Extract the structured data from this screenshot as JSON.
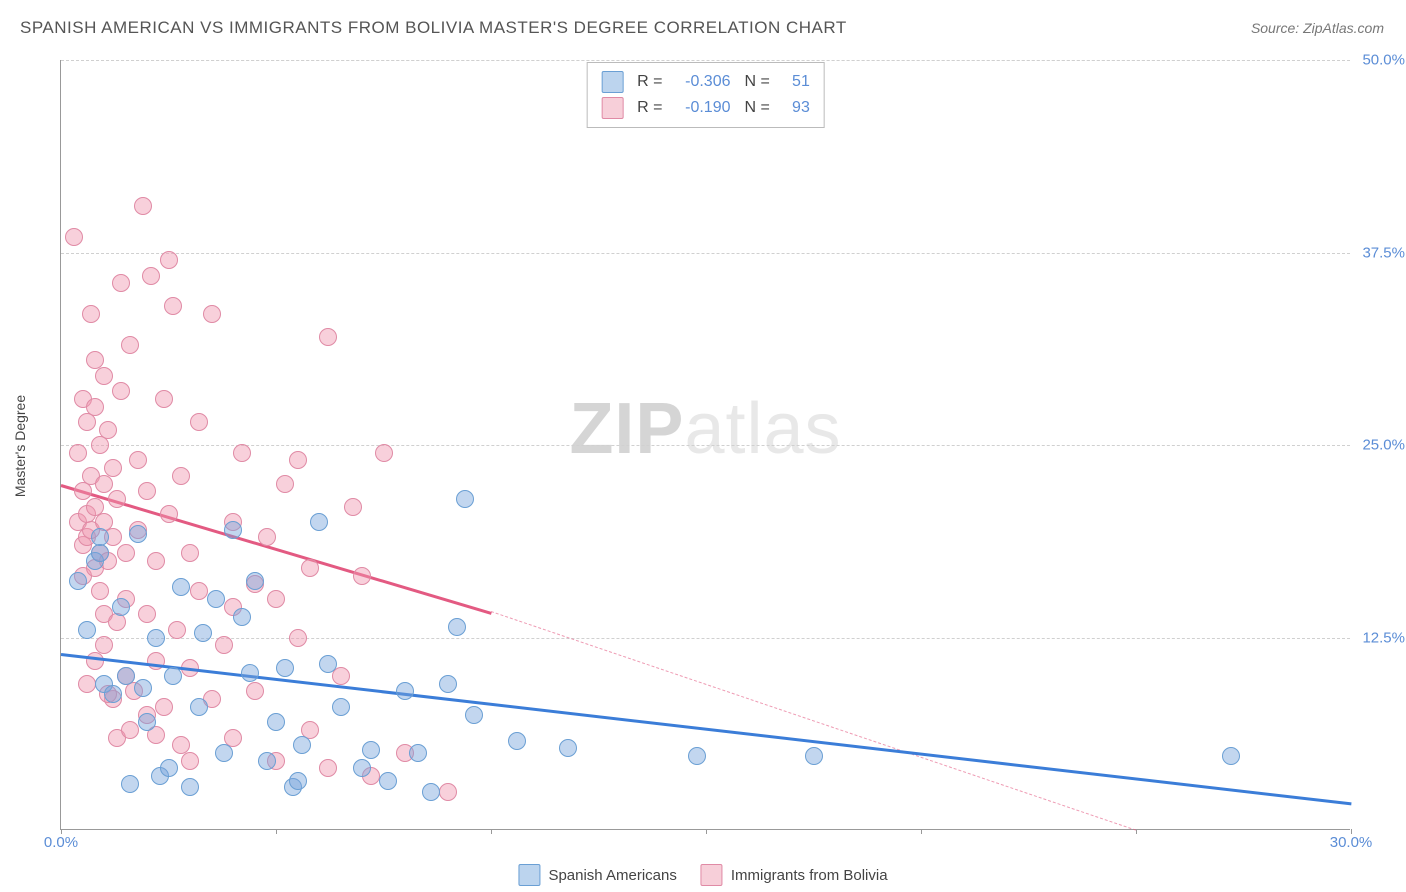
{
  "title": "SPANISH AMERICAN VS IMMIGRANTS FROM BOLIVIA MASTER'S DEGREE CORRELATION CHART",
  "source": "Source: ZipAtlas.com",
  "ylabel": "Master's Degree",
  "watermark_bold": "ZIP",
  "watermark_light": "atlas",
  "chart": {
    "type": "scatter",
    "xlim": [
      0,
      30
    ],
    "ylim": [
      0,
      50
    ],
    "background_color": "#ffffff",
    "grid_color": "#d0d0d0",
    "x_ticks": [
      0,
      5,
      10,
      15,
      20,
      25,
      30
    ],
    "x_tick_labels": [
      "0.0%",
      "",
      "",
      "",
      "",
      "",
      "30.0%"
    ],
    "y_ticks": [
      12.5,
      25.0,
      37.5,
      50.0
    ],
    "y_tick_labels": [
      "12.5%",
      "25.0%",
      "37.5%",
      "50.0%"
    ],
    "axis_color": "#999999",
    "tick_label_color": "#5b8dd6",
    "tick_label_fontsize": 15
  },
  "series": [
    {
      "name": "Spanish Americans",
      "color_fill": "rgba(120,165,220,0.45)",
      "color_stroke": "#6a9fd4",
      "swatch_fill": "#bcd4ee",
      "swatch_border": "#6a9fd4",
      "stats": {
        "r_label": "R =",
        "r": "-0.306",
        "n_label": "N =",
        "n": "51"
      },
      "regression": {
        "x1": 0,
        "y1": 11.5,
        "x2": 30,
        "y2": 1.8,
        "color": "#3b7dd8",
        "width": 3,
        "dashed_extension": false
      },
      "marker_radius": 9,
      "points": [
        [
          0.4,
          16.2
        ],
        [
          0.6,
          13.0
        ],
        [
          0.8,
          17.5
        ],
        [
          0.9,
          18.0
        ],
        [
          0.9,
          19.0
        ],
        [
          1.0,
          9.5
        ],
        [
          1.2,
          8.8
        ],
        [
          1.4,
          14.5
        ],
        [
          1.5,
          10.0
        ],
        [
          1.6,
          3.0
        ],
        [
          1.8,
          19.2
        ],
        [
          1.9,
          9.2
        ],
        [
          2.0,
          7.0
        ],
        [
          2.2,
          12.5
        ],
        [
          2.3,
          3.5
        ],
        [
          2.5,
          4.0
        ],
        [
          2.6,
          10.0
        ],
        [
          2.8,
          15.8
        ],
        [
          3.0,
          2.8
        ],
        [
          3.2,
          8.0
        ],
        [
          3.3,
          12.8
        ],
        [
          3.6,
          15.0
        ],
        [
          3.8,
          5.0
        ],
        [
          4.0,
          19.5
        ],
        [
          4.2,
          13.8
        ],
        [
          4.4,
          10.2
        ],
        [
          4.5,
          16.2
        ],
        [
          4.8,
          4.5
        ],
        [
          5.0,
          7.0
        ],
        [
          5.2,
          10.5
        ],
        [
          5.4,
          2.8
        ],
        [
          5.6,
          5.5
        ],
        [
          6.0,
          20.0
        ],
        [
          6.2,
          10.8
        ],
        [
          6.5,
          8.0
        ],
        [
          7.0,
          4.0
        ],
        [
          7.2,
          5.2
        ],
        [
          7.6,
          3.2
        ],
        [
          8.0,
          9.0
        ],
        [
          8.3,
          5.0
        ],
        [
          8.6,
          2.5
        ],
        [
          9.0,
          9.5
        ],
        [
          9.4,
          21.5
        ],
        [
          9.6,
          7.5
        ],
        [
          10.6,
          5.8
        ],
        [
          11.8,
          5.3
        ],
        [
          14.8,
          4.8
        ],
        [
          17.5,
          4.8
        ],
        [
          27.2,
          4.8
        ],
        [
          9.2,
          13.2
        ],
        [
          5.5,
          3.2
        ]
      ]
    },
    {
      "name": "Immigrants from Bolivia",
      "color_fill": "rgba(240,150,175,0.45)",
      "color_stroke": "#e08aa5",
      "swatch_fill": "#f7cfd9",
      "swatch_border": "#e08aa5",
      "stats": {
        "r_label": "R =",
        "r": "-0.190",
        "n_label": "N =",
        "n": "93"
      },
      "regression": {
        "x1": 0,
        "y1": 22.5,
        "x2": 10,
        "y2": 14.2,
        "color": "#e35a82",
        "width": 3,
        "dashed_extension": true,
        "dash_x2": 25,
        "dash_y2": 0
      },
      "marker_radius": 9,
      "points": [
        [
          0.3,
          38.5
        ],
        [
          0.4,
          20.0
        ],
        [
          0.4,
          24.5
        ],
        [
          0.5,
          16.5
        ],
        [
          0.5,
          18.5
        ],
        [
          0.5,
          22.0
        ],
        [
          0.5,
          28.0
        ],
        [
          0.6,
          19.0
        ],
        [
          0.6,
          20.5
        ],
        [
          0.6,
          26.5
        ],
        [
          0.7,
          19.5
        ],
        [
          0.7,
          23.0
        ],
        [
          0.7,
          33.5
        ],
        [
          0.8,
          17.0
        ],
        [
          0.8,
          21.0
        ],
        [
          0.8,
          27.5
        ],
        [
          0.8,
          30.5
        ],
        [
          0.9,
          15.5
        ],
        [
          0.9,
          18.0
        ],
        [
          0.9,
          25.0
        ],
        [
          1.0,
          12.0
        ],
        [
          1.0,
          14.0
        ],
        [
          1.0,
          20.0
        ],
        [
          1.0,
          22.5
        ],
        [
          1.0,
          29.5
        ],
        [
          1.1,
          17.5
        ],
        [
          1.1,
          26.0
        ],
        [
          1.2,
          8.5
        ],
        [
          1.2,
          19.0
        ],
        [
          1.2,
          23.5
        ],
        [
          1.3,
          13.5
        ],
        [
          1.3,
          21.5
        ],
        [
          1.4,
          28.5
        ],
        [
          1.4,
          35.5
        ],
        [
          1.5,
          10.0
        ],
        [
          1.5,
          15.0
        ],
        [
          1.5,
          18.0
        ],
        [
          1.6,
          31.5
        ],
        [
          1.7,
          9.0
        ],
        [
          1.8,
          19.5
        ],
        [
          1.8,
          24.0
        ],
        [
          1.9,
          40.5
        ],
        [
          2.0,
          7.5
        ],
        [
          2.0,
          14.0
        ],
        [
          2.0,
          22.0
        ],
        [
          2.1,
          36.0
        ],
        [
          2.2,
          11.0
        ],
        [
          2.2,
          17.5
        ],
        [
          2.4,
          8.0
        ],
        [
          2.4,
          28.0
        ],
        [
          2.5,
          20.5
        ],
        [
          2.5,
          37.0
        ],
        [
          2.7,
          13.0
        ],
        [
          2.8,
          5.5
        ],
        [
          2.8,
          23.0
        ],
        [
          3.0,
          10.5
        ],
        [
          3.0,
          18.0
        ],
        [
          3.2,
          26.5
        ],
        [
          3.2,
          15.5
        ],
        [
          3.5,
          8.5
        ],
        [
          3.5,
          33.5
        ],
        [
          3.8,
          12.0
        ],
        [
          4.0,
          20.0
        ],
        [
          4.0,
          6.0
        ],
        [
          4.2,
          24.5
        ],
        [
          4.5,
          16.0
        ],
        [
          4.5,
          9.0
        ],
        [
          4.8,
          19.0
        ],
        [
          5.0,
          4.5
        ],
        [
          5.2,
          22.5
        ],
        [
          5.5,
          12.5
        ],
        [
          5.5,
          24.0
        ],
        [
          5.8,
          6.5
        ],
        [
          5.8,
          17.0
        ],
        [
          6.2,
          4.0
        ],
        [
          6.2,
          32.0
        ],
        [
          6.5,
          10.0
        ],
        [
          6.8,
          21.0
        ],
        [
          7.0,
          16.5
        ],
        [
          7.2,
          3.5
        ],
        [
          7.5,
          24.5
        ],
        [
          8.0,
          5.0
        ],
        [
          9.0,
          2.5
        ],
        [
          1.3,
          6.0
        ],
        [
          3.0,
          4.5
        ],
        [
          1.6,
          6.5
        ],
        [
          2.6,
          34.0
        ],
        [
          0.6,
          9.5
        ],
        [
          0.8,
          11.0
        ],
        [
          1.1,
          8.8
        ],
        [
          2.2,
          6.2
        ],
        [
          4.0,
          14.5
        ],
        [
          5.0,
          15.0
        ]
      ]
    }
  ]
}
